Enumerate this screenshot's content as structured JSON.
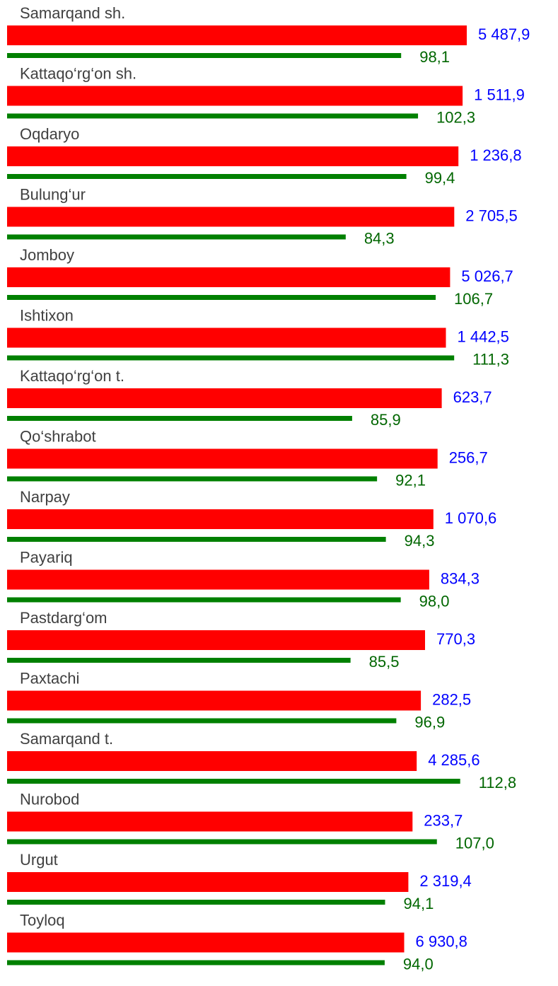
{
  "chart_data": {
    "type": "bar",
    "categories": [
      "Samarqand sh.",
      "Kattaqo‘rg‘on sh.",
      "Oqdaryo",
      "Bulung‘ur",
      "Jomboy",
      "Ishtixon",
      "Kattaqo‘rg‘on t.",
      "Qo‘shrabot",
      "Narpay",
      "Payariq",
      "Pastdarg‘om",
      "Paxtachi",
      "Samarqand t.",
      "Nurobod",
      "Urgut",
      "Toyloq"
    ],
    "series": [
      {
        "color": "#ff0000",
        "label_color": "#0000ff",
        "values": [
          5487.9,
          1511.9,
          1236.8,
          2705.5,
          5026.7,
          1442.5,
          623.7,
          256.7,
          1070.6,
          834.3,
          770.3,
          282.5,
          4285.6,
          233.7,
          2319.4,
          6930.8
        ],
        "value_labels": [
          "5 487,9",
          "1 511,9",
          "1 236,8",
          "2 705,5",
          "5 026,7",
          "1 442,5",
          "623,7",
          "256,7",
          "1 070,6",
          "834,3",
          "770,3",
          "282,5",
          "4 285,6",
          "233,7",
          "2 319,4",
          "6 930,8"
        ]
      },
      {
        "color": "#008000",
        "label_color": "#006600",
        "values": [
          98.1,
          102.3,
          99.4,
          84.3,
          106.7,
          111.3,
          85.9,
          92.1,
          94.3,
          98.0,
          85.5,
          96.9,
          112.8,
          107.0,
          94.1,
          94.0
        ],
        "value_labels": [
          "98,1",
          "102,3",
          "99,4",
          "84,3",
          "106,7",
          "111,3",
          "85,9",
          "92,1",
          "94,3",
          "98,0",
          "85,5",
          "96,9",
          "112,8",
          "107,0",
          "94,1",
          "94,0"
        ]
      }
    ]
  }
}
